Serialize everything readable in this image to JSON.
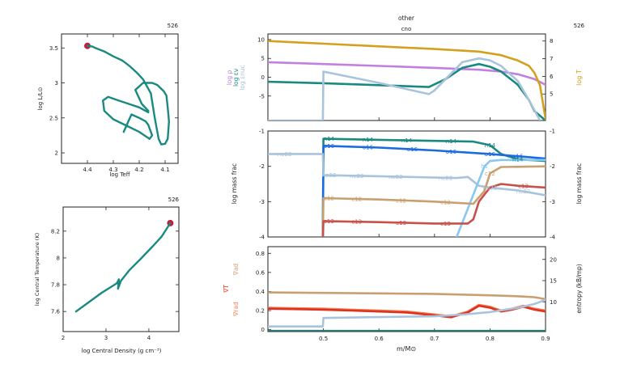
{
  "chart_data": [
    {
      "id": "hr",
      "type": "line",
      "model_number": "526",
      "xlabel": "log Teff",
      "ylabel": "log L/L⊙",
      "xlim": [
        4.5,
        4.05
      ],
      "ylim": [
        1.85,
        3.7
      ],
      "xticks": [
        "4.4",
        "4.3",
        "4.2",
        "4.1"
      ],
      "xtick_values": [
        4.4,
        4.3,
        4.2,
        4.1
      ],
      "yticks": [
        "2",
        "2.5",
        "3",
        "3.5"
      ],
      "ytick_values": [
        2,
        2.5,
        3,
        3.5
      ],
      "series": [
        {
          "color": "#1a8a80",
          "x": [
            4.26,
            4.23,
            4.2,
            4.175,
            4.165,
            4.16,
            4.155,
            4.15,
            4.16,
            4.2,
            4.3,
            4.335,
            4.34,
            4.32,
            4.28,
            4.24,
            4.2,
            4.165,
            4.165,
            4.19,
            4.215,
            4.185,
            4.15,
            4.13,
            4.105,
            4.095,
            4.09,
            4.085,
            4.09,
            4.1,
            4.115,
            4.125,
            4.14,
            4.155,
            4.185,
            4.21,
            4.24,
            4.265,
            4.3,
            4.335,
            4.37,
            4.38,
            4.4
          ],
          "y": [
            2.3,
            2.55,
            2.5,
            2.45,
            2.4,
            2.35,
            2.3,
            2.25,
            2.2,
            2.3,
            2.48,
            2.6,
            2.75,
            2.8,
            2.75,
            2.7,
            2.65,
            2.58,
            2.6,
            2.7,
            2.9,
            3.0,
            3.0,
            2.97,
            2.88,
            2.82,
            2.65,
            2.45,
            2.2,
            2.13,
            2.12,
            2.2,
            2.5,
            2.85,
            3.05,
            3.15,
            3.25,
            3.32,
            3.38,
            3.45,
            3.5,
            3.52,
            3.53
          ]
        }
      ],
      "current_point": {
        "x": 4.4,
        "y": 3.53,
        "color": "#c41e3a"
      }
    },
    {
      "id": "center",
      "type": "line",
      "model_number": "526",
      "xlabel": "log Central Density (g cm⁻³)",
      "ylabel": "log Central Temperature (K)",
      "xlim": [
        2.0,
        4.7
      ],
      "ylim": [
        7.45,
        8.38
      ],
      "xticks": [
        "2",
        "3",
        "4"
      ],
      "xtick_values": [
        2,
        3,
        4
      ],
      "yticks": [
        "7.6",
        "7.8",
        "8",
        "8.2"
      ],
      "ytick_values": [
        7.6,
        7.8,
        8.0,
        8.2
      ],
      "series": [
        {
          "color": "#1a8a80",
          "x": [
            2.3,
            2.6,
            2.9,
            3.1,
            3.25,
            3.3,
            3.28,
            3.35,
            3.55,
            3.8,
            4.1,
            4.3,
            4.5
          ],
          "y": [
            7.6,
            7.67,
            7.74,
            7.78,
            7.81,
            7.84,
            7.77,
            7.83,
            7.91,
            7.99,
            8.09,
            8.16,
            8.26
          ]
        }
      ],
      "current_point": {
        "x": 4.5,
        "y": 8.26,
        "color": "#c41e3a"
      }
    },
    {
      "id": "top-profile",
      "type": "line",
      "model_number": "526",
      "header_labels": [
        "other",
        "cno"
      ],
      "xlim": [
        0.4,
        0.9
      ],
      "ylim_left": [
        -11.5,
        11.5
      ],
      "yticks_left": [
        "-5",
        "0",
        "5",
        "10"
      ],
      "ytick_values_left": [
        -5,
        0,
        5,
        10
      ],
      "ylim_right": [
        3.5,
        8.4
      ],
      "yticks_right": [
        "5",
        "6",
        "7",
        "8"
      ],
      "ytick_values_right": [
        5,
        6,
        7,
        8
      ],
      "ylabels_left": [
        {
          "text": "log ρ",
          "color": "#c27fe0"
        },
        {
          "text": "log εν",
          "color": "#1a8a80"
        },
        {
          "text": "log εnuc",
          "color": "#a8c4dc"
        }
      ],
      "ylabel_right": {
        "text": "log T",
        "color": "#d4a020"
      },
      "series": [
        {
          "name": "log ρ",
          "axis": "left",
          "color": "#c27fe0",
          "x": [
            0.4,
            0.5,
            0.6,
            0.7,
            0.78,
            0.82,
            0.85,
            0.88,
            0.9
          ],
          "y": [
            4.0,
            3.5,
            3.0,
            2.5,
            2.0,
            1.5,
            0.8,
            -0.5,
            -2.0
          ]
        },
        {
          "name": "log εν",
          "axis": "left",
          "color": "#1a8a80",
          "x": [
            0.4,
            0.5,
            0.6,
            0.69,
            0.72,
            0.75,
            0.78,
            0.8,
            0.82,
            0.85,
            0.87,
            0.88,
            0.9
          ],
          "y": [
            -1.2,
            -1.6,
            -2.1,
            -2.6,
            -0.5,
            2.5,
            3.5,
            2.8,
            1.5,
            -2.0,
            -6.0,
            -9.0,
            -11.5
          ]
        },
        {
          "name": "log εnuc",
          "axis": "left",
          "color": "#a8c4dc",
          "x": [
            0.4,
            0.499,
            0.5,
            0.6,
            0.69,
            0.7,
            0.72,
            0.75,
            0.78,
            0.8,
            0.82,
            0.85,
            0.87,
            0.89
          ],
          "y": [
            -11.5,
            -11.5,
            1.5,
            -1.5,
            -4.5,
            -3.5,
            -0.5,
            4.0,
            5.0,
            4.5,
            3.0,
            -1.0,
            -6.0,
            -11.5
          ]
        },
        {
          "name": "log T",
          "axis": "right",
          "color": "#d4a020",
          "x": [
            0.4,
            0.5,
            0.6,
            0.7,
            0.78,
            0.82,
            0.85,
            0.87,
            0.88,
            0.89,
            0.9
          ],
          "y": [
            8.0,
            7.85,
            7.7,
            7.55,
            7.4,
            7.2,
            6.9,
            6.6,
            6.2,
            5.5,
            3.6
          ]
        }
      ]
    },
    {
      "id": "abundances",
      "type": "line",
      "xlim": [
        0.4,
        0.9
      ],
      "ylim": [
        -4,
        -1
      ],
      "yticks": [
        "-4",
        "-3",
        "-2",
        "-1"
      ],
      "ytick_values": [
        -4,
        -3,
        -2,
        -1
      ],
      "ylabel_left": "log mass frac",
      "ylabel_right": "log mass frac",
      "series": [
        {
          "name": "n14",
          "color": "#1a8a80",
          "x": [
            0.499,
            0.5,
            0.6,
            0.7,
            0.77,
            0.8,
            0.82,
            0.85,
            0.9
          ],
          "y": [
            -4,
            -1.22,
            -1.25,
            -1.28,
            -1.3,
            -1.4,
            -1.65,
            -1.8,
            -1.85
          ],
          "label_x": [
            0.51,
            0.58,
            0.65,
            0.73,
            0.8,
            0.85
          ]
        },
        {
          "name": "o16",
          "color": "#1a6ae0",
          "x": [
            0.499,
            0.5,
            0.6,
            0.7,
            0.8,
            0.9
          ],
          "y": [
            -4,
            -1.42,
            -1.47,
            -1.55,
            -1.65,
            -1.78
          ],
          "label_x": [
            0.51,
            0.58,
            0.66,
            0.73,
            0.8,
            0.85
          ]
        },
        {
          "name": "ne22",
          "color": "#a8c4dc",
          "x": [
            0.4,
            0.499,
            0.5,
            0.6,
            0.7,
            0.74,
            0.76,
            0.78,
            0.8,
            0.85,
            0.9
          ],
          "y": [
            -1.65,
            -1.65,
            -2.25,
            -2.28,
            -2.32,
            -2.33,
            -2.3,
            -2.55,
            -2.6,
            -2.68,
            -2.82
          ],
          "label_x": [
            0.43,
            0.51,
            0.56,
            0.63,
            0.72,
            0.8,
            0.86
          ]
        },
        {
          "name": "h1",
          "color": "#88c8f0",
          "x": [
            0.74,
            0.75,
            0.76,
            0.77,
            0.78,
            0.79,
            0.8,
            0.82,
            0.9
          ],
          "y": [
            -4,
            -3.6,
            -3.2,
            -2.8,
            -2.4,
            -2.0,
            -1.85,
            -1.82,
            -1.82
          ],
          "label_x": [
            0.79
          ]
        },
        {
          "name": "c12",
          "color": "#c8a070",
          "x": [
            0.499,
            0.5,
            0.6,
            0.7,
            0.77,
            0.79,
            0.8,
            0.82,
            0.9
          ],
          "y": [
            -4,
            -2.9,
            -2.94,
            -3.0,
            -3.06,
            -2.7,
            -2.2,
            -2.02,
            -2.0
          ],
          "label_x": [
            0.51,
            0.56,
            0.64,
            0.72,
            0.8
          ]
        },
        {
          "name": "c13",
          "color": "#c8504a",
          "x": [
            0.499,
            0.5,
            0.6,
            0.7,
            0.76,
            0.77,
            0.78,
            0.79,
            0.8,
            0.82,
            0.85,
            0.9
          ],
          "y": [
            -4,
            -3.55,
            -3.58,
            -3.62,
            -3.62,
            -3.5,
            -3.0,
            -2.8,
            -2.6,
            -2.5,
            -2.55,
            -2.6
          ],
          "label_x": [
            0.51,
            0.56,
            0.64,
            0.72,
            0.86
          ]
        }
      ]
    },
    {
      "id": "bottom-profile",
      "type": "line",
      "xlim": [
        0.4,
        0.9
      ],
      "xlabel": "m/M⊙",
      "xticks": [
        "0.5",
        "0.6",
        "0.7",
        "0.8",
        "0.9"
      ],
      "xtick_values": [
        0.5,
        0.6,
        0.7,
        0.8,
        0.9
      ],
      "ylim_left": [
        -0.02,
        0.87
      ],
      "yticks_left": [
        "0",
        "0.2",
        "0.4",
        "0.6",
        "0.8"
      ],
      "ytick_values_left": [
        0,
        0.2,
        0.4,
        0.6,
        0.8
      ],
      "ylim_right": [
        3,
        23
      ],
      "yticks_right": [
        "10",
        "15",
        "20"
      ],
      "ytick_values_right": [
        10,
        15,
        20
      ],
      "ylabels_left": [
        {
          "text": "∇ad",
          "color": "#c8a070"
        },
        {
          "text": "∇T",
          "color": "#e0301e"
        },
        {
          "text": "∇rad",
          "color": "#f08050"
        }
      ],
      "ylabel_right": {
        "text": "entropy (kB/mp)",
        "color": "#222222"
      },
      "series": [
        {
          "name": "∇ad",
          "axis": "left",
          "color": "#c8a070",
          "x": [
            0.4,
            0.5,
            0.6,
            0.7,
            0.8,
            0.85,
            0.88,
            0.9
          ],
          "y": [
            0.39,
            0.385,
            0.38,
            0.375,
            0.36,
            0.35,
            0.34,
            0.32
          ]
        },
        {
          "name": "∇rad",
          "axis": "left",
          "color": "#f08050",
          "x": [
            0.4,
            0.5,
            0.55,
            0.6,
            0.65,
            0.7,
            0.73,
            0.76,
            0.78,
            0.8,
            0.82,
            0.84,
            0.86,
            0.88,
            0.9
          ],
          "y": [
            0.23,
            0.22,
            0.21,
            0.2,
            0.19,
            0.16,
            0.14,
            0.19,
            0.26,
            0.24,
            0.2,
            0.22,
            0.25,
            0.22,
            0.2
          ]
        },
        {
          "name": "∇T",
          "axis": "left",
          "color": "#e0301e",
          "x": [
            0.4,
            0.5,
            0.55,
            0.6,
            0.65,
            0.7,
            0.73,
            0.76,
            0.78,
            0.8,
            0.82,
            0.84,
            0.86,
            0.88,
            0.9
          ],
          "y": [
            0.22,
            0.21,
            0.2,
            0.19,
            0.18,
            0.15,
            0.13,
            0.18,
            0.25,
            0.23,
            0.19,
            0.21,
            0.24,
            0.21,
            0.19
          ]
        },
        {
          "name": "entropy",
          "axis": "right",
          "color": "#a8c4dc",
          "x": [
            0.4,
            0.499,
            0.5,
            0.6,
            0.7,
            0.75,
            0.8,
            0.85,
            0.88,
            0.9
          ],
          "y": [
            4.2,
            4.2,
            6.2,
            6.4,
            6.6,
            7.0,
            7.6,
            8.6,
            9.5,
            10.5
          ]
        },
        {
          "name": "baseline",
          "axis": "left",
          "color": "#1a8a80",
          "x": [
            0.4,
            0.9
          ],
          "y": [
            -0.008,
            -0.008
          ]
        }
      ]
    }
  ]
}
